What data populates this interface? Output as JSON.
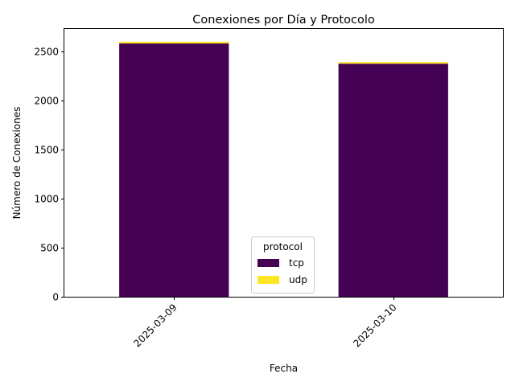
{
  "chart_data": {
    "type": "bar",
    "stacked": true,
    "title": "Conexiones por Día y Protocolo",
    "xlabel": "Fecha",
    "ylabel": "Número de Conexiones",
    "categories": [
      "2025-03-09",
      "2025-03-10"
    ],
    "series": [
      {
        "name": "tcp",
        "values": [
          2582,
          2376
        ],
        "color": "#440154"
      },
      {
        "name": "udp",
        "values": [
          18,
          16
        ],
        "color": "#fde725"
      }
    ],
    "ylim": [
      0,
      2730
    ],
    "yticks": [
      0,
      500,
      1000,
      1500,
      2000,
      2500
    ],
    "grid": false,
    "legend": {
      "title": "protocol",
      "position": "lower center"
    }
  }
}
